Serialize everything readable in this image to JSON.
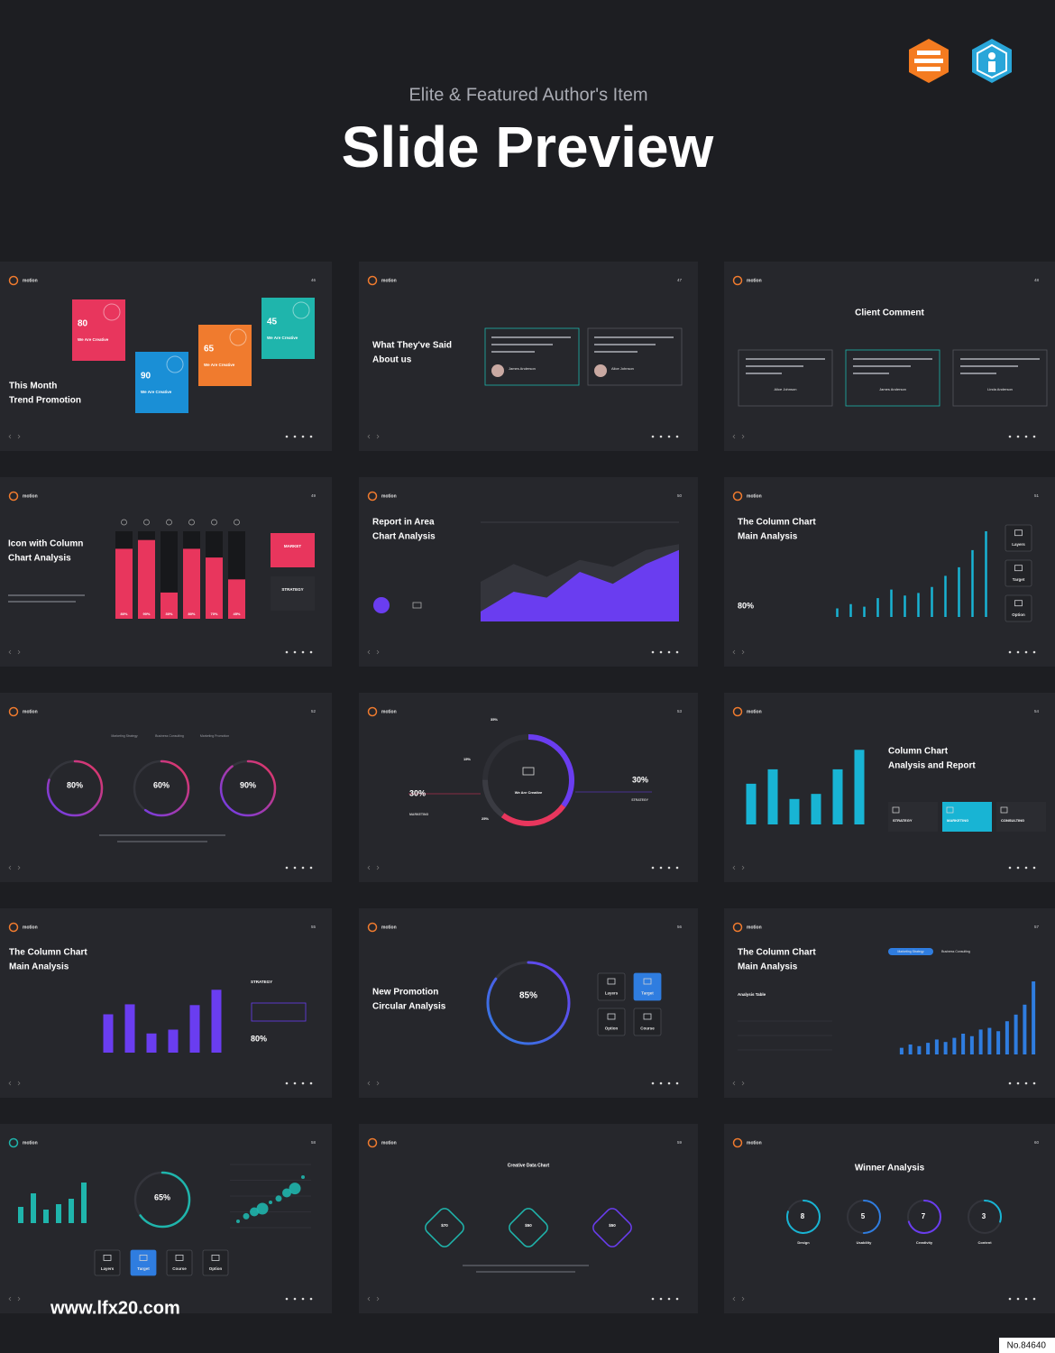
{
  "header": {
    "subtitle": "Elite & Featured Author's Item",
    "title": "Slide Preview"
  },
  "slides": [
    {
      "type": "cards",
      "brand": "motion",
      "number": "46",
      "title": [
        "This Month",
        "Trend Promotion"
      ],
      "cards": [
        {
          "value": 80,
          "label": "We Are Creative",
          "color": "#e8365d"
        },
        {
          "value": 90,
          "label": "We Are Creative",
          "color": "#1a8fd6"
        },
        {
          "value": 65,
          "label": "We Are Creative",
          "color": "#f07b2e"
        },
        {
          "value": 45,
          "label": "We Are Creative",
          "color": "#1fb5ac"
        }
      ]
    },
    {
      "type": "testimonials",
      "brand": "motion",
      "number": "47",
      "title": [
        "What They've Said",
        "About us"
      ],
      "names": [
        "James Anderson",
        "Alice Johnson"
      ]
    },
    {
      "type": "testimonials-centered",
      "brand": "motion",
      "number": "48",
      "title": [
        "Client Comment"
      ],
      "names": [
        "Alice Johnson",
        "James Anderson",
        "Linda Anderson"
      ]
    },
    {
      "type": "bars",
      "brand": "motion",
      "number": "49",
      "title": [
        "Icon with Column",
        "Chart Analysis"
      ],
      "values": [
        80,
        90,
        30,
        80,
        70,
        45
      ],
      "value_labels": [
        "80%",
        "90%",
        "30%",
        "80%",
        "70%",
        "45%"
      ],
      "ylim": [
        0,
        100
      ],
      "color": "#e8365d",
      "boxes": [
        "MARKET",
        "STRATEGY"
      ]
    },
    {
      "type": "area",
      "brand": "motion",
      "number": "50",
      "title": [
        "Report in Area",
        "Chart Analysis"
      ],
      "ylim": [
        0,
        100
      ],
      "series": [
        {
          "color": "#34353c",
          "values": [
            40,
            58,
            45,
            62,
            55,
            72,
            78
          ]
        },
        {
          "color": "#6a3df0",
          "values": [
            10,
            30,
            24,
            50,
            38,
            58,
            72
          ]
        }
      ]
    },
    {
      "type": "columns",
      "brand": "motion",
      "number": "51",
      "title": [
        "The Column Chart",
        "Main Analysis"
      ],
      "stat": "80%",
      "values": [
        10,
        15,
        12,
        22,
        32,
        25,
        28,
        35,
        48,
        58,
        78,
        100
      ],
      "ylim": [
        0,
        100
      ],
      "color": "#18b4d4",
      "icons": [
        "Layers",
        "Target",
        "Option"
      ]
    },
    {
      "type": "rings",
      "brand": "motion",
      "number": "52",
      "tabs": [
        "Marketing Strategy",
        "Business Consulting",
        "Marketing Promotion"
      ],
      "values": [
        80,
        60,
        90
      ],
      "value_labels": [
        "80%",
        "60%",
        "90%"
      ],
      "ylim": [
        0,
        100
      ]
    },
    {
      "type": "donut",
      "brand": "motion",
      "number": "53",
      "center": "We Are Creative",
      "segments": [
        {
          "label": "35%",
          "value": 35,
          "color": "#6a3df0"
        },
        {
          "label": "25%",
          "value": 25,
          "color": "#e8365d"
        },
        {
          "label": "15%",
          "value": 15,
          "color": "#3a3b42"
        }
      ],
      "left": {
        "value": "30%",
        "label": "MARKETING"
      },
      "right": {
        "value": "30%",
        "label": "STRATEGY"
      }
    },
    {
      "type": "columns-report",
      "brand": "motion",
      "number": "54",
      "title": [
        "Column Chart",
        "Analysis and Report"
      ],
      "values": [
        48,
        65,
        30,
        36,
        65,
        88
      ],
      "ylim": [
        0,
        100
      ],
      "color": "#18b4d4",
      "boxes": [
        "STRATEGY",
        "MARKETING",
        "CONSULTING"
      ]
    },
    {
      "type": "columns-purple",
      "brand": "motion",
      "number": "55",
      "title": [
        "The Column Chart",
        "Main Analysis"
      ],
      "values": [
        50,
        63,
        25,
        30,
        62,
        82
      ],
      "ylim": [
        0,
        100
      ],
      "color": "#6a3df0",
      "label": "STRATEGY",
      "stat": "80%"
    },
    {
      "type": "ring-icons",
      "brand": "motion",
      "number": "56",
      "title": [
        "New Promotion",
        "Circular Analysis"
      ],
      "value": 85,
      "value_label": "85%",
      "ylim": [
        0,
        100
      ],
      "icons": [
        "Layers",
        "Target",
        "Option",
        "Course"
      ]
    },
    {
      "type": "columns-table",
      "brand": "motion",
      "number": "57",
      "title": [
        "The Column Chart",
        "Main Analysis"
      ],
      "tabs": [
        "Marketing Strategy",
        "Business Consulting"
      ],
      "table_title": "Analysis Table",
      "values": [
        8,
        12,
        10,
        14,
        18,
        15,
        20,
        25,
        22,
        30,
        32,
        28,
        40,
        48,
        60,
        88
      ],
      "ylim": [
        0,
        100
      ],
      "color": "#2f7de0"
    },
    {
      "type": "mixed",
      "brand": "motion",
      "number": "58",
      "values": [
        30,
        55,
        25,
        35,
        45,
        75
      ],
      "ylim": [
        0,
        100
      ],
      "color": "#1fb5ac",
      "ring": {
        "value": 65,
        "label": "65%"
      },
      "scatter": {
        "x": [
          1,
          2,
          3,
          4,
          5,
          6,
          7,
          8,
          9
        ],
        "y": [
          1,
          1.8,
          2.5,
          3,
          4,
          4.6,
          5.5,
          6.2,
          8
        ],
        "xlim": [
          0,
          10
        ],
        "ylim": [
          0,
          10
        ]
      },
      "icons": [
        "Layers",
        "Target",
        "Course",
        "Option"
      ]
    },
    {
      "type": "diamonds",
      "brand": "motion",
      "number": "59",
      "title": [
        "Creative Data Chart"
      ],
      "labels": [
        "$70",
        "$50",
        "$50"
      ]
    },
    {
      "type": "winner",
      "brand": "motion",
      "number": "60",
      "title": [
        "Winner Analysis"
      ],
      "values": [
        8,
        5,
        7,
        3
      ],
      "value_labels": [
        "8",
        "5",
        "7",
        "3"
      ],
      "ylim": [
        0,
        10
      ],
      "names": [
        "Design",
        "Usability",
        "Creativity",
        "Content"
      ]
    }
  ],
  "watermark": "www.lfx20.com",
  "stamp": "No.84640"
}
